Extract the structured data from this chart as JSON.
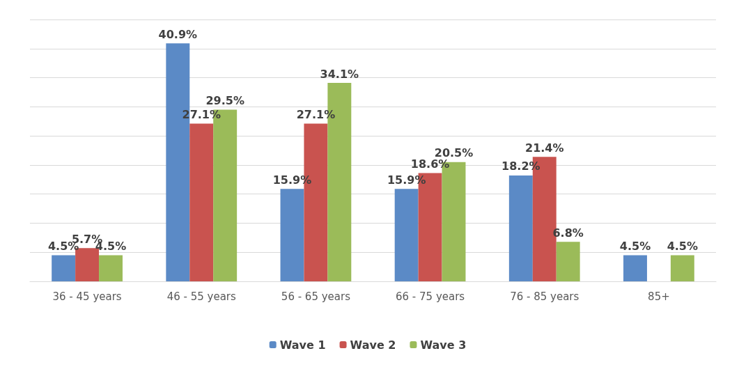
{
  "chart_data": {
    "type": "bar",
    "categories": [
      "36 - 45 years",
      "46 - 55 years",
      "56 - 65 years",
      "66 - 75 years",
      "76 - 85 years",
      "85+"
    ],
    "series": [
      {
        "name": "Wave 1",
        "color": "#5b8ac6",
        "values": [
          4.5,
          40.9,
          15.9,
          15.9,
          18.2,
          4.5
        ],
        "value_labels": [
          "4.5%",
          "40.9%",
          "15.9%",
          "15.9%",
          "18.2%",
          "4.5%"
        ]
      },
      {
        "name": "Wave 2",
        "color": "#c9534f",
        "values": [
          5.7,
          27.1,
          27.1,
          18.6,
          21.4,
          null
        ],
        "value_labels": [
          "5.7%",
          "27.1%",
          "27.1%",
          "18.6%",
          "21.4%",
          null
        ]
      },
      {
        "name": "Wave 3",
        "color": "#9bbb59",
        "values": [
          4.5,
          29.5,
          34.1,
          20.5,
          6.8,
          4.5
        ],
        "value_labels": [
          "4.5%",
          "29.5%",
          "34.1%",
          "20.5%",
          "6.8%",
          "4.5%"
        ]
      }
    ],
    "ylim": [
      0,
      45
    ],
    "yticks": [
      {
        "value": 0,
        "label": null
      },
      {
        "value": 5,
        "label": null
      },
      {
        "value": 10,
        "label": null
      },
      {
        "value": 15,
        "label": null
      },
      {
        "value": 20,
        "label": null
      },
      {
        "value": 25,
        "label": null
      },
      {
        "value": 30,
        "label": null
      },
      {
        "value": 35,
        "label": null
      },
      {
        "value": 40,
        "label": null
      },
      {
        "value": 45,
        "label": null
      }
    ],
    "grid": "y",
    "legend": "bottom",
    "tick_labels": "x"
  }
}
